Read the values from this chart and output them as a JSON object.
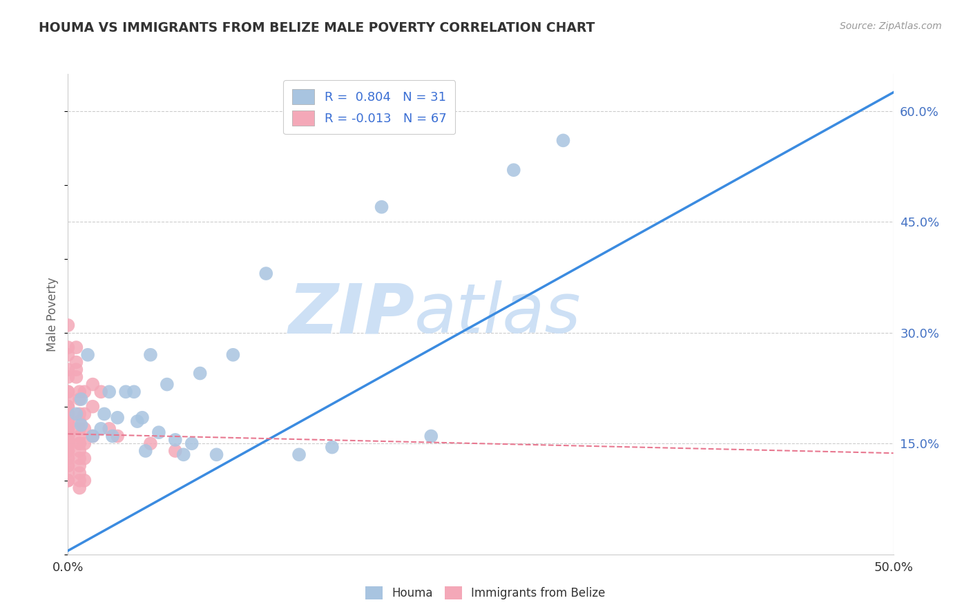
{
  "title": "HOUMA VS IMMIGRANTS FROM BELIZE MALE POVERTY CORRELATION CHART",
  "source": "Source: ZipAtlas.com",
  "ylabel": "Male Poverty",
  "right_yticks": [
    "60.0%",
    "45.0%",
    "30.0%",
    "15.0%"
  ],
  "right_ytick_vals": [
    0.6,
    0.45,
    0.3,
    0.15
  ],
  "houma_color": "#a8c4e0",
  "belize_color": "#f4a8b8",
  "houma_line_color": "#3b8be0",
  "belize_line_color": "#e87890",
  "houma_line": [
    0.0,
    0.005,
    0.5,
    0.625
  ],
  "belize_line": [
    0.0,
    0.163,
    0.5,
    0.137
  ],
  "houma_scatter": [
    [
      0.005,
      0.19
    ],
    [
      0.008,
      0.21
    ],
    [
      0.012,
      0.27
    ],
    [
      0.015,
      0.16
    ],
    [
      0.02,
      0.17
    ],
    [
      0.022,
      0.19
    ],
    [
      0.025,
      0.22
    ],
    [
      0.027,
      0.16
    ],
    [
      0.03,
      0.185
    ],
    [
      0.035,
      0.22
    ],
    [
      0.04,
      0.22
    ],
    [
      0.042,
      0.18
    ],
    [
      0.045,
      0.185
    ],
    [
      0.047,
      0.14
    ],
    [
      0.05,
      0.27
    ],
    [
      0.055,
      0.165
    ],
    [
      0.06,
      0.23
    ],
    [
      0.065,
      0.155
    ],
    [
      0.07,
      0.135
    ],
    [
      0.075,
      0.15
    ],
    [
      0.08,
      0.245
    ],
    [
      0.09,
      0.135
    ],
    [
      0.1,
      0.27
    ],
    [
      0.12,
      0.38
    ],
    [
      0.14,
      0.135
    ],
    [
      0.16,
      0.145
    ],
    [
      0.19,
      0.47
    ],
    [
      0.22,
      0.16
    ],
    [
      0.27,
      0.52
    ],
    [
      0.3,
      0.56
    ],
    [
      0.008,
      0.175
    ]
  ],
  "belize_scatter": [
    [
      0.0,
      0.31
    ],
    [
      0.0,
      0.28
    ],
    [
      0.0,
      0.27
    ],
    [
      0.0,
      0.25
    ],
    [
      0.0,
      0.24
    ],
    [
      0.0,
      0.22
    ],
    [
      0.0,
      0.22
    ],
    [
      0.0,
      0.21
    ],
    [
      0.0,
      0.2
    ],
    [
      0.0,
      0.2
    ],
    [
      0.0,
      0.19
    ],
    [
      0.0,
      0.19
    ],
    [
      0.0,
      0.18
    ],
    [
      0.0,
      0.18
    ],
    [
      0.0,
      0.17
    ],
    [
      0.0,
      0.17
    ],
    [
      0.0,
      0.17
    ],
    [
      0.0,
      0.16
    ],
    [
      0.0,
      0.16
    ],
    [
      0.0,
      0.16
    ],
    [
      0.0,
      0.16
    ],
    [
      0.0,
      0.15
    ],
    [
      0.0,
      0.15
    ],
    [
      0.0,
      0.15
    ],
    [
      0.0,
      0.15
    ],
    [
      0.0,
      0.14
    ],
    [
      0.0,
      0.14
    ],
    [
      0.0,
      0.14
    ],
    [
      0.0,
      0.13
    ],
    [
      0.0,
      0.13
    ],
    [
      0.0,
      0.12
    ],
    [
      0.0,
      0.12
    ],
    [
      0.0,
      0.11
    ],
    [
      0.0,
      0.1
    ],
    [
      0.0,
      0.1
    ],
    [
      0.005,
      0.28
    ],
    [
      0.005,
      0.26
    ],
    [
      0.005,
      0.25
    ],
    [
      0.005,
      0.24
    ],
    [
      0.007,
      0.22
    ],
    [
      0.007,
      0.21
    ],
    [
      0.007,
      0.19
    ],
    [
      0.007,
      0.18
    ],
    [
      0.007,
      0.17
    ],
    [
      0.007,
      0.16
    ],
    [
      0.007,
      0.15
    ],
    [
      0.007,
      0.15
    ],
    [
      0.007,
      0.14
    ],
    [
      0.007,
      0.13
    ],
    [
      0.007,
      0.12
    ],
    [
      0.007,
      0.11
    ],
    [
      0.007,
      0.1
    ],
    [
      0.007,
      0.09
    ],
    [
      0.01,
      0.22
    ],
    [
      0.01,
      0.19
    ],
    [
      0.01,
      0.17
    ],
    [
      0.01,
      0.15
    ],
    [
      0.01,
      0.13
    ],
    [
      0.01,
      0.1
    ],
    [
      0.015,
      0.23
    ],
    [
      0.015,
      0.2
    ],
    [
      0.015,
      0.16
    ],
    [
      0.02,
      0.22
    ],
    [
      0.025,
      0.17
    ],
    [
      0.03,
      0.16
    ],
    [
      0.05,
      0.15
    ],
    [
      0.065,
      0.14
    ]
  ],
  "xlim": [
    0,
    0.5
  ],
  "ylim": [
    0,
    0.65
  ],
  "background_color": "#ffffff",
  "watermark_zip": "ZIP",
  "watermark_atlas": "atlas",
  "watermark_color": "#cde0f5"
}
